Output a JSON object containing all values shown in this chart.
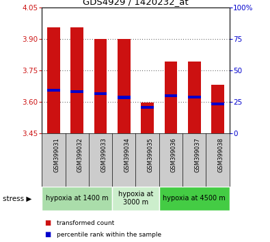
{
  "title": "GDS4929 / 1420232_at",
  "samples": [
    "GSM399031",
    "GSM399032",
    "GSM399033",
    "GSM399034",
    "GSM399035",
    "GSM399036",
    "GSM399037",
    "GSM399038"
  ],
  "bar_tops": [
    3.955,
    3.955,
    3.9,
    3.9,
    3.595,
    3.79,
    3.79,
    3.68
  ],
  "bar_bottoms": [
    3.45,
    3.45,
    3.45,
    3.45,
    3.45,
    3.45,
    3.45,
    3.45
  ],
  "percentile_values": [
    3.655,
    3.648,
    3.638,
    3.62,
    3.573,
    3.628,
    3.622,
    3.59
  ],
  "ylim_left": [
    3.45,
    4.05
  ],
  "yticks_left": [
    3.45,
    3.6,
    3.75,
    3.9,
    4.05
  ],
  "ylim_right": [
    0,
    100
  ],
  "yticks_right": [
    0,
    25,
    50,
    75,
    100
  ],
  "bar_color": "#cc1111",
  "percentile_color": "#0000cc",
  "grid_color": "#000000",
  "stress_groups": [
    {
      "label": "hypoxia at 1400 m",
      "start": 0,
      "end": 3,
      "color": "#aaddaa"
    },
    {
      "label": "hypoxia at\n3000 m",
      "start": 3,
      "end": 5,
      "color": "#cceecc"
    },
    {
      "label": "hypoxia at 4500 m",
      "start": 5,
      "end": 8,
      "color": "#44cc44"
    }
  ],
  "sample_bg_color": "#cccccc",
  "legend_items": [
    {
      "label": "transformed count",
      "color": "#cc1111"
    },
    {
      "label": "percentile rank within the sample",
      "color": "#0000cc"
    }
  ],
  "bar_width": 0.55,
  "left_tick_color": "#cc1111",
  "right_tick_color": "#0000cc"
}
